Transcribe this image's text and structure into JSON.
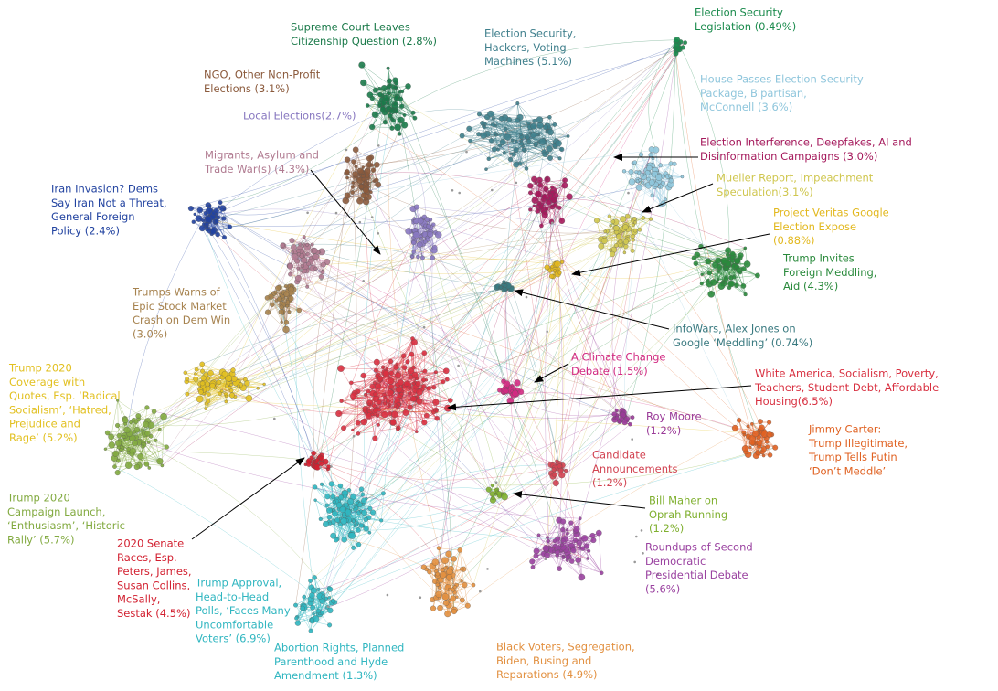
{
  "clusters": [
    {
      "label": [
        "Supreme Court Leaves",
        "Citizenship Question (2.8%)"
      ]
    },
    {
      "label": [
        "Election Security,",
        "Hackers, Voting",
        "Machines (5.1%)"
      ]
    },
    {
      "label": [
        "Election Security",
        "Legislation (0.49%)"
      ]
    },
    {
      "label": [
        "NGO, Other Non-Profit",
        "Elections (3.1%)"
      ]
    },
    {
      "label": [
        "House Passes Election Security",
        "Package, Bipartisan,",
        "McConnell (3.6%)"
      ]
    },
    {
      "label": [
        "Local Elections(2.7%)"
      ]
    },
    {
      "label": [
        "Election Interference, Deepfakes, AI and",
        "Disinformation Campaigns (3.0%)"
      ]
    },
    {
      "label": [
        "Migrants, Asylum and",
        "Trade War(s) (4.3%)"
      ]
    },
    {
      "label": [
        "Mueller Report, Impeachment",
        "Speculation(3.1%)"
      ]
    },
    {
      "label": [
        "Iran Invasion? Dems",
        "Say Iran Not a Threat,",
        "General Foreign",
        "Policy (2.4%)"
      ]
    },
    {
      "label": [
        "Project Veritas Google",
        "Election Expose",
        "(0.88%)"
      ]
    },
    {
      "label": [
        "Trump Invites",
        "Foreign Meddling,",
        "Aid (4.3%)"
      ]
    },
    {
      "label": [
        "Trumps Warns of",
        "Epic Stock Market",
        "Crash on Dem Win",
        "(3.0%)"
      ]
    },
    {
      "label": [
        "InfoWars, Alex Jones on",
        "Google ‘Meddling’ (0.74%)"
      ]
    },
    {
      "label": [
        "A Climate Change",
        "Debate (1.5%)"
      ]
    },
    {
      "label": [
        "Trump 2020",
        "Coverage with",
        "Quotes, Esp. ‘Radical",
        "Socialism’, ‘Hatred,",
        "Prejudice and",
        "Rage’ (5.2%)"
      ]
    },
    {
      "label": [
        "White America, Socialism, Poverty,",
        "Teachers, Student Debt, Affordable",
        "Housing(6.5%)"
      ]
    },
    {
      "label": [
        "Roy Moore",
        "(1.2%)"
      ]
    },
    {
      "label": [
        "Jimmy Carter:",
        "Trump Illegitimate,",
        "Trump Tells Putin",
        "‘Don’t Meddle’"
      ]
    },
    {
      "label": [
        "Candidate",
        "Announcements",
        "(1.2%)"
      ]
    },
    {
      "label": [
        "Trump 2020",
        "Campaign Launch,",
        "‘Enthusiasm’, ‘Historic",
        "Rally’ (5.7%)"
      ]
    },
    {
      "label": [
        "Bill Maher on",
        "Oprah Running",
        "(1.2%)"
      ]
    },
    {
      "label": [
        "2020 Senate",
        "Races, Esp.",
        "Peters, James,",
        "Susan Collins,",
        "McSally,",
        "Sestak (4.5%)"
      ]
    },
    {
      "label": [
        "Roundups of Second",
        "Democratic",
        "Presidential Debate",
        "(5.6%)"
      ]
    },
    {
      "label": [
        "Trump Approval,",
        "Head-to-Head",
        "Polls, ‘Faces Many",
        "Uncomfortable",
        "Voters’ (6.9%)"
      ]
    },
    {
      "label": [
        "Abortion Rights, Planned",
        "Parenthood and Hyde",
        "Amendment (1.3%)"
      ]
    },
    {
      "label": [
        "Black Voters, Segregation,",
        "Biden, Busing and",
        "Reparations (4.9%)"
      ]
    }
  ]
}
